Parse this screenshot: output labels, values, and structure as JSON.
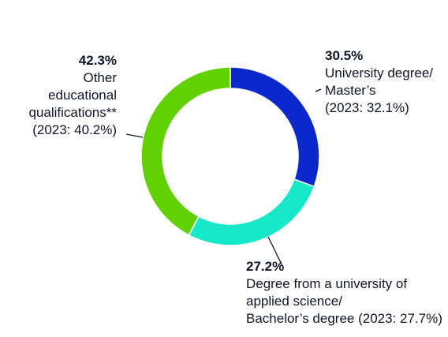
{
  "chart_data": {
    "type": "pie",
    "donut": true,
    "title": "",
    "series": [
      {
        "name": "University degree/ Master’s",
        "value": 30.5,
        "value_label": "30.5%",
        "label_lines": [
          "University degree/",
          "Master’s",
          "(2023: 32.1%)"
        ],
        "prior": "(2023: 32.1%)",
        "color": "#0a28cc"
      },
      {
        "name": "Degree from a university of applied science/ Bachelor’s degree",
        "value": 27.2,
        "value_label": "27.2%",
        "label_lines": [
          "Degree from a university of",
          "applied science/",
          "Bachelor’s degree (2023: 27.7%)"
        ],
        "prior": "(2023: 27.7%)",
        "color": "#17e8c9"
      },
      {
        "name": "Other educational qualifications**",
        "value": 42.3,
        "value_label": "42.3%",
        "label_lines": [
          "Other",
          "educational",
          "qualifications**",
          "(2023: 40.2%)"
        ],
        "prior": "(2023: 40.2%)",
        "color": "#61d104"
      }
    ]
  }
}
